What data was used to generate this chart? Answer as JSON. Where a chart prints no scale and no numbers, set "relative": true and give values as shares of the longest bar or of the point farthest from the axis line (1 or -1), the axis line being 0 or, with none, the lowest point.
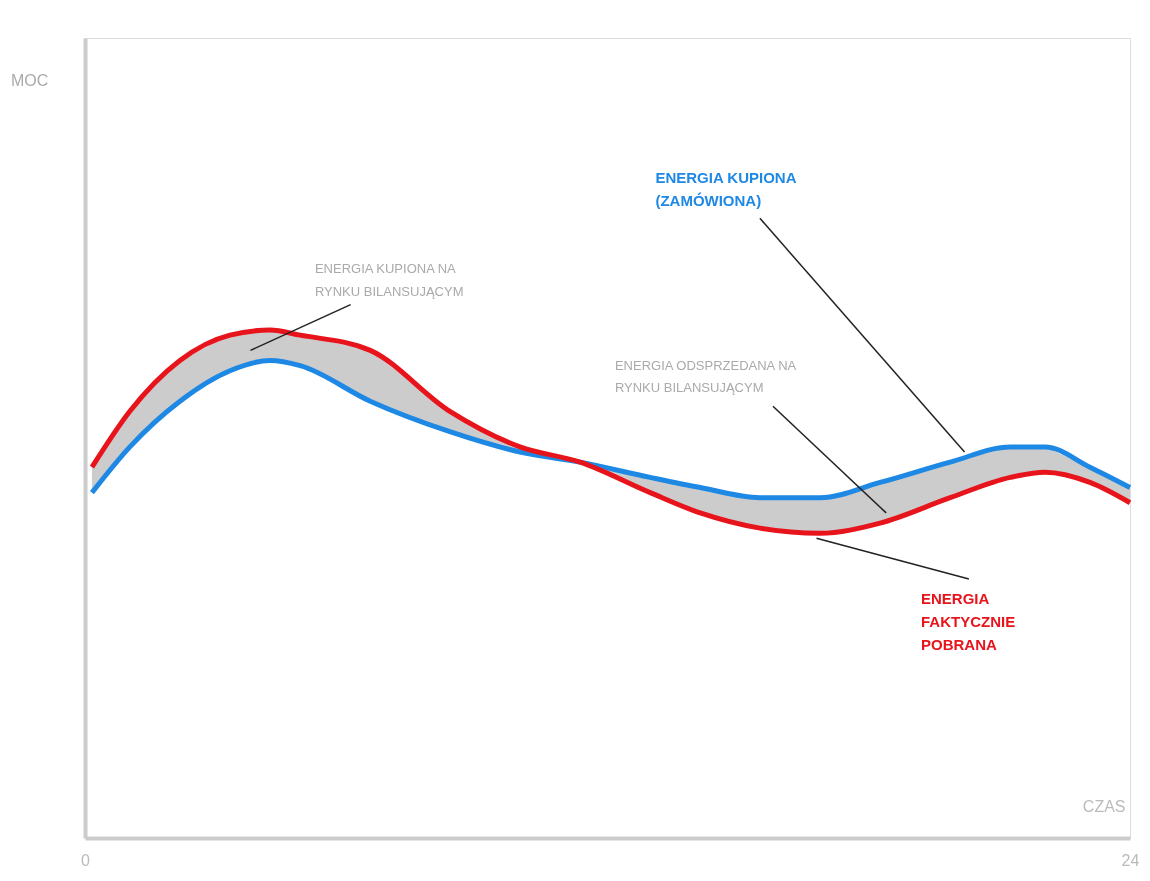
{
  "chart_data": {
    "type": "line",
    "relative": true,
    "xlabel": "CZAS",
    "x": [
      0.16,
      1.03,
      2.18,
      3.33,
      4.25,
      4.94,
      6.55,
      8.38,
      9.99,
      11.37,
      12.98,
      14.13,
      15.5,
      16.88,
      18.26,
      19.87,
      21.25,
      22.05,
      23.08,
      24
    ],
    "series": [
      {
        "name": "ENERGIA KUPIONA (ZAMÓWIONA)",
        "color": "#1e88e5",
        "values": [
          0.68,
          0.77,
          0.86,
          0.92,
          0.94,
          0.93,
          0.86,
          0.8,
          0.76,
          0.74,
          0.71,
          0.69,
          0.67,
          0.67,
          0.7,
          0.74,
          0.77,
          0.77,
          0.73,
          0.69
        ]
      },
      {
        "name": "ENERGIA FAKTYCZNIE POBRANA",
        "color": "#e8141c",
        "values": [
          0.73,
          0.84,
          0.94,
          0.99,
          1.0,
          0.99,
          0.96,
          0.84,
          0.77,
          0.74,
          0.68,
          0.64,
          0.61,
          0.6,
          0.62,
          0.67,
          0.71,
          0.72,
          0.7,
          0.66
        ]
      }
    ],
    "annotations": [
      "MOC",
      "ENERGIA KUPIONA NA RYNKU BILANSUJĄCYM",
      "ENERGIA ODSPRZEDANA NA RYNKU BILANSUJĄCYM"
    ],
    "xlim": [
      0,
      24
    ],
    "xticks": [
      0,
      24
    ],
    "tick_labels": "x",
    "grid": false,
    "marker": "none",
    "line_style": "solid"
  }
}
